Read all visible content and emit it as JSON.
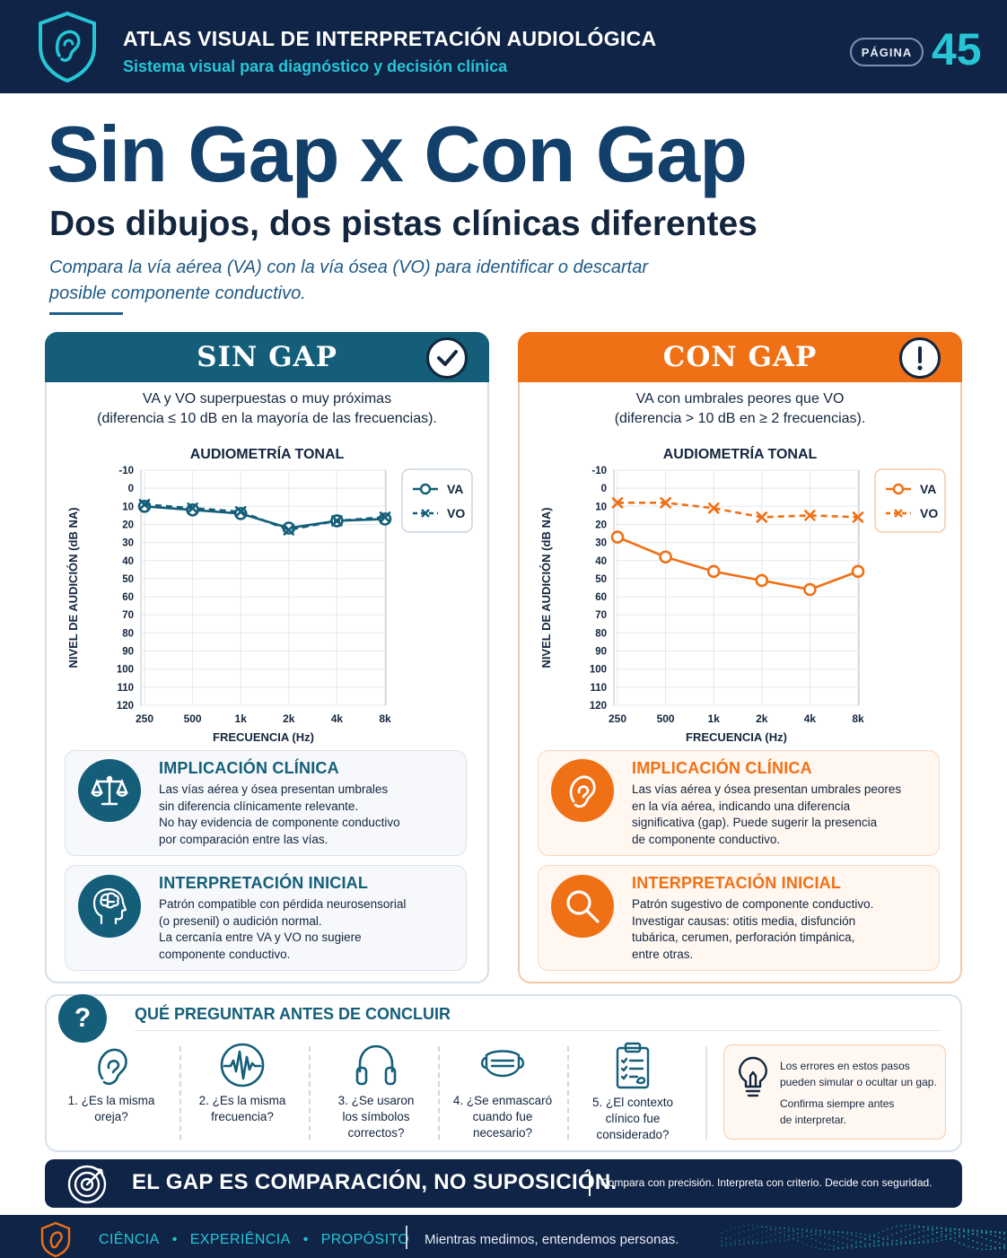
{
  "header": {
    "title": "ATLAS VISUAL DE INTERPRETACIÓN AUDIOLÓGICA",
    "subtitle": "Sistema visual para diagnóstico y decisión clínica",
    "page_label": "PÁGINA",
    "page_number": "45",
    "logo_icon": "ear-shield-icon"
  },
  "hero": {
    "title": "Sin Gap x Con Gap",
    "subtitle": "Dos dibujos, dos pistas clínicas diferentes",
    "intro_line1": "Compara la vía aérea (VA) con la vía ósea (VO) para identificar o descartar",
    "intro_line2": "posible componente conductivo."
  },
  "panels": {
    "left": {
      "title": "SIN GAP",
      "status_icon": "check-circle-icon",
      "desc_line1": "VA y VO superpuestas o muy próximas",
      "desc_line2": "(diferencia ≤ 10 dB en la mayoría de las frecuencias).",
      "chart_title": "AUDIOMETRÍA TONAL",
      "color": "#145e7a",
      "card1": {
        "title": "IMPLICACIÓN CLÍNICA",
        "icon": "scale-icon",
        "lines": [
          "Las vías aérea y ósea presentan umbrales",
          "sin diferencia clínicamente relevante.",
          "No hay evidencia de componente conductivo",
          "por comparación entre las vías."
        ]
      },
      "card2": {
        "title": "INTERPRETACIÓN INICIAL",
        "icon": "brain-head-icon",
        "lines": [
          "Patrón compatible con pérdida neurosensorial",
          "(o presenil) o audición normal.",
          "La cercanía entre VA y VO no sugiere",
          "componente conductivo."
        ]
      }
    },
    "right": {
      "title": "CON GAP",
      "status_icon": "exclamation-circle-icon",
      "desc_line1": "VA con umbrales peores que VO",
      "desc_line2": "(diferencia > 10 dB en ≥ 2 frecuencias).",
      "chart_title": "AUDIOMETRÍA TONAL",
      "color": "#f07015",
      "card1": {
        "title": "IMPLICACIÓN CLÍNICA",
        "icon": "ear-icon",
        "lines": [
          "Las vías aérea y ósea presentan umbrales peores",
          "en la vía aérea, indicando una diferencia",
          "significativa (gap). Puede sugerir la presencia",
          "de componente conductivo."
        ]
      },
      "card2": {
        "title": "INTERPRETACIÓN INICIAL",
        "icon": "magnifier-icon",
        "lines": [
          "Patrón sugestivo de componente conductivo.",
          "Investigar causas: otitis media, disfunción",
          "tubárica, cerumen, perforación timpánica,",
          "entre otras."
        ]
      }
    }
  },
  "chart_data": [
    {
      "type": "line",
      "title": "AUDIOMETRÍA TONAL",
      "xlabel": "FRECUENCIA (Hz)",
      "ylabel": "NIVEL DE AUDICIÓN (dB NA)",
      "categories": [
        "250",
        "500",
        "1k",
        "2k",
        "4k",
        "8k"
      ],
      "yticks": [
        "-10",
        "0",
        "10",
        "20",
        "30",
        "40",
        "50",
        "60",
        "70",
        "80",
        "90",
        "100",
        "110",
        "120"
      ],
      "ylim": [
        -10,
        120
      ],
      "y_inverted": true,
      "grid": true,
      "legend": "top-right",
      "series": [
        {
          "name": "VA",
          "marker": "circle",
          "line": "solid",
          "values": [
            10,
            12,
            14,
            22,
            18,
            17
          ]
        },
        {
          "name": "VO",
          "marker": "x",
          "line": "dashed",
          "values": [
            9,
            11,
            13,
            23,
            18,
            16
          ]
        }
      ]
    },
    {
      "type": "line",
      "title": "AUDIOMETRÍA TONAL",
      "xlabel": "FRECUENCIA (Hz)",
      "ylabel": "NIVEL DE AUDICIÓN (dB NA)",
      "categories": [
        "250",
        "500",
        "1k",
        "2k",
        "4k",
        "8k"
      ],
      "yticks": [
        "-10",
        "0",
        "10",
        "20",
        "30",
        "40",
        "50",
        "60",
        "70",
        "80",
        "90",
        "100",
        "110",
        "120"
      ],
      "ylim": [
        -10,
        120
      ],
      "y_inverted": true,
      "grid": true,
      "legend": "top-right",
      "series": [
        {
          "name": "VA",
          "marker": "circle",
          "line": "solid",
          "values": [
            27,
            38,
            46,
            51,
            56,
            46
          ]
        },
        {
          "name": "VO",
          "marker": "x",
          "line": "dashed",
          "values": [
            8,
            8,
            11,
            16,
            15,
            16
          ]
        }
      ]
    }
  ],
  "questions": {
    "badge": "?",
    "title": "QUÉ PREGUNTAR ANTES DE CONCLUIR",
    "items": [
      {
        "icon": "ear-outline-icon",
        "lines": [
          "1. ¿Es la misma",
          "oreja?"
        ]
      },
      {
        "icon": "waveform-icon",
        "lines": [
          "2. ¿Es la misma",
          "frecuencia?"
        ]
      },
      {
        "icon": "headphones-icon",
        "lines": [
          "3. ¿Se usaron",
          "los símbolos",
          "correctos?"
        ]
      },
      {
        "icon": "mask-icon",
        "lines": [
          "4. ¿Se enmascaró",
          "cuando fue",
          "necesario?"
        ]
      },
      {
        "icon": "clipboard-icon",
        "lines": [
          "5. ¿El contexto",
          "clínico fue",
          "considerado?"
        ]
      }
    ],
    "tip_icon": "lightbulb-icon",
    "tip_line1": "Los errores en estos pasos",
    "tip_line2": "pueden simular o ocultar un gap.",
    "tip_line3": "Confirma siempre antes",
    "tip_line4": "de interpretar."
  },
  "banner": {
    "icon": "target-icon",
    "text": "EL GAP ES COMPARACIÓN, NO SUPOSICIÓN.",
    "subtext": "Compara con precisión. Interpreta con criterio. Decide con seguridad."
  },
  "footer": {
    "logo_icon": "ear-shield-icon",
    "item1": "CIÊNCIA",
    "item2": "EXPERIÊNCIA",
    "item3": "PROPÓSITO",
    "separator": "•",
    "tagline": "Mientras medimos, entendemos personas."
  }
}
